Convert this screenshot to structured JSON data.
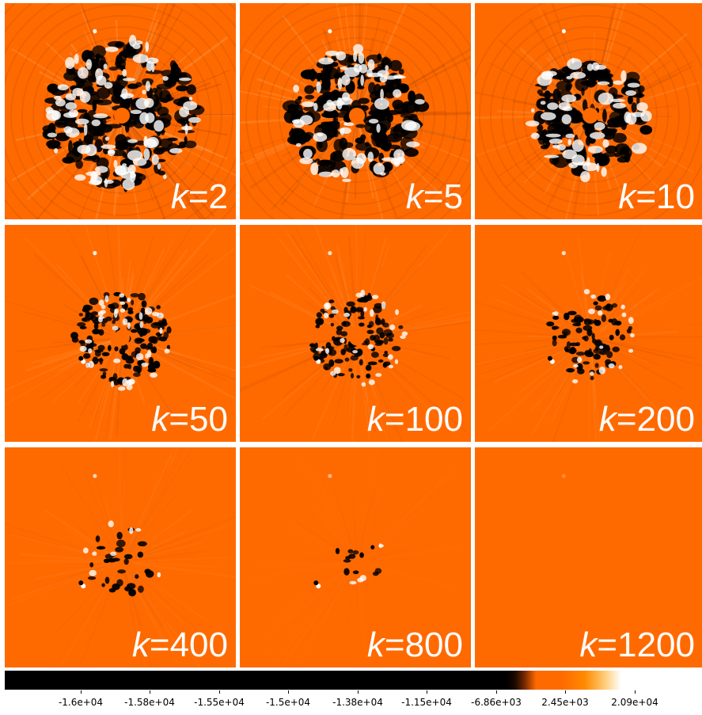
{
  "figure": {
    "panels": [
      {
        "k_label": "k",
        "k_value": "=2"
      },
      {
        "k_label": "k",
        "k_value": "=5"
      },
      {
        "k_label": "k",
        "k_value": "=10"
      },
      {
        "k_label": "k",
        "k_value": "=50"
      },
      {
        "k_label": "k",
        "k_value": "=100"
      },
      {
        "k_label": "k",
        "k_value": "=200"
      },
      {
        "k_label": "k",
        "k_value": "=400"
      },
      {
        "k_label": "k",
        "k_value": "=800"
      },
      {
        "k_label": "k",
        "k_value": "=1200"
      }
    ],
    "colorbar": {
      "tick_labels": [
        "-1.6e+04",
        "-1.58e+04",
        "-1.55e+04",
        "-1.5e+04",
        "-1.38e+04",
        "-1.15e+04",
        "-6.86e+03",
        "2.45e+03",
        "2.09e+04"
      ],
      "colors": {
        "low": "#000000",
        "mid": "#ff6a00",
        "high": "#ffffff"
      }
    },
    "colors": {
      "background_orange": "#ff6a00",
      "label_white": "#ffffff",
      "divider_white": "#ffffff"
    }
  }
}
